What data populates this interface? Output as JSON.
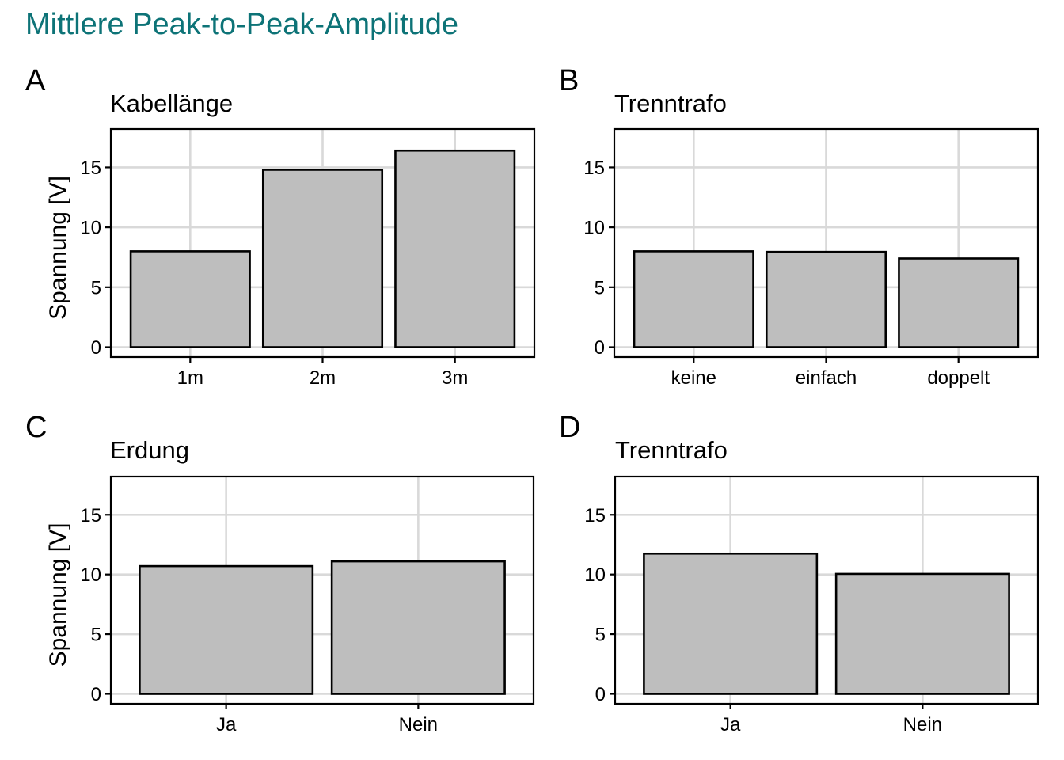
{
  "title": "Mittlere Peak-to-Peak-Amplitude",
  "colors": {
    "title": "#0d7377",
    "bar_fill": "#bebebe",
    "bar_outline": "#000000",
    "grid": "#d9d9d9"
  },
  "chart_data": [
    {
      "tag": "A",
      "type": "bar",
      "title": "Kabellänge",
      "ylabel": "Spannung [V]",
      "categories": [
        "1m",
        "2m",
        "3m"
      ],
      "values": [
        8.0,
        14.8,
        16.4
      ],
      "yticks": [
        0,
        5,
        10,
        15
      ],
      "ylim": [
        0,
        18.2
      ],
      "grid": true
    },
    {
      "tag": "B",
      "type": "bar",
      "title": "Trenntrafo",
      "ylabel": "",
      "categories": [
        "keine",
        "einfach",
        "doppelt"
      ],
      "values": [
        8.0,
        7.95,
        7.4
      ],
      "yticks": [
        0,
        5,
        10,
        15
      ],
      "ylim": [
        0,
        18.2
      ],
      "grid": true
    },
    {
      "tag": "C",
      "type": "bar",
      "title": "Erdung",
      "ylabel": "Spannung [V]",
      "categories": [
        "Ja",
        "Nein"
      ],
      "values": [
        10.7,
        11.1
      ],
      "yticks": [
        0,
        5,
        10,
        15
      ],
      "ylim": [
        0,
        18.2
      ],
      "grid": true
    },
    {
      "tag": "D",
      "type": "bar",
      "title": "Trenntrafo",
      "ylabel": "",
      "categories": [
        "Ja",
        "Nein"
      ],
      "values": [
        11.75,
        10.05
      ],
      "yticks": [
        0,
        5,
        10,
        15
      ],
      "ylim": [
        0,
        18.2
      ],
      "grid": true
    }
  ]
}
